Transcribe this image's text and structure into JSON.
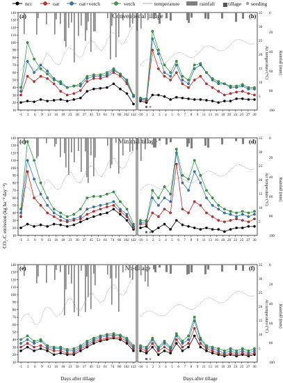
{
  "legend": {
    "ncc": "ncc",
    "oat": "oat",
    "oat_vetch": "oat+vetch",
    "vetch": "vetch",
    "temperature": "temperature",
    "rainfall": "rainfall",
    "tillage": "tillage",
    "seeding": "seeding"
  },
  "colors": {
    "ncc": "#000000",
    "oat": "#d62728",
    "oat_vetch": "#2a7ab8",
    "vetch": "#2f9e44",
    "temperature": "#9a9a9a",
    "rainfall": "#7f7f7f"
  },
  "panel_letters": {
    "a": "(a)",
    "b": "(b)",
    "c": "(c)",
    "d": "(d)",
    "e": "(e)",
    "f": "(f)"
  },
  "titles": {
    "conv": "Conventional tillage",
    "min": "Minimal tillage",
    "no": "No-tillage"
  },
  "left_ylabel": "CO₂-C emission (kg ha⁻¹ day⁻¹)",
  "right_ylabel": "Air temperature (°C)",
  "rain_ylabel": "Rainfall (mm)",
  "xlabel": "Days after tillage",
  "left_xticks": [
    "-1",
    "3",
    "6",
    "9",
    "13",
    "16",
    "18",
    "23",
    "30",
    "37",
    "45",
    "53",
    "61",
    "74",
    "86",
    "102",
    "122"
  ],
  "right_xticks": [
    "-10",
    "1",
    "2",
    "3",
    "4",
    "5",
    "6",
    "7",
    "8",
    "9",
    "11",
    "13",
    "16",
    "18",
    "20",
    "23",
    "25",
    "27",
    "30"
  ],
  "left_yticks": [
    "10",
    "20",
    "30",
    "40",
    "50",
    "60",
    "70",
    "80",
    "90",
    "100",
    "110",
    "120",
    "130",
    "140"
  ],
  "temp_ticks": [
    "5",
    "10",
    "15",
    "20",
    "25",
    "30",
    "35"
  ],
  "rain_ticks": [
    "0",
    "20",
    "40",
    "60",
    "80",
    "100"
  ],
  "chart_data": [
    {
      "type": "line",
      "panel": "(a)",
      "title": "Conventional tillage",
      "xlabel": "",
      "ylabel": "CO₂-C emission (kg ha⁻¹ day⁻¹)",
      "ylim": [
        10,
        140
      ],
      "x": [
        "-1",
        "1",
        "3",
        "6",
        "9",
        "13",
        "16",
        "18",
        "23",
        "30",
        "37",
        "45",
        "53",
        "61",
        "74",
        "86",
        "102",
        "122"
      ],
      "series": [
        {
          "name": "ncc",
          "values": [
            20,
            22,
            21,
            24,
            22,
            23,
            24,
            22,
            24,
            26,
            35,
            38,
            39,
            40,
            45,
            38,
            32,
            18
          ]
        },
        {
          "name": "oat",
          "values": [
            30,
            55,
            48,
            55,
            52,
            45,
            35,
            30,
            32,
            36,
            48,
            52,
            52,
            55,
            60,
            55,
            45,
            28
          ]
        },
        {
          "name": "oat+vetch",
          "values": [
            35,
            75,
            60,
            70,
            62,
            52,
            45,
            40,
            42,
            42,
            52,
            55,
            55,
            57,
            63,
            58,
            48,
            28
          ]
        },
        {
          "name": "vetch",
          "values": [
            40,
            100,
            78,
            65,
            58,
            50,
            48,
            40,
            42,
            45,
            55,
            57,
            57,
            60,
            65,
            58,
            50,
            30
          ]
        }
      ],
      "temperature_range": [
        5,
        35
      ],
      "rainfall_range": [
        0,
        100
      ]
    },
    {
      "type": "line",
      "panel": "(b)",
      "title": "",
      "xlabel": "",
      "ylabel": "",
      "ylim": [
        10,
        140
      ],
      "x": [
        "-10",
        "0",
        "1",
        "2",
        "3",
        "4",
        "5",
        "6",
        "7",
        "8",
        "9",
        "11",
        "13",
        "16",
        "18",
        "20",
        "23",
        "25",
        "27",
        "30"
      ],
      "series": [
        {
          "name": "ncc",
          "values": [
            22,
            20,
            30,
            30,
            28,
            24,
            27,
            26,
            25,
            24,
            24,
            23,
            22,
            20,
            22,
            22,
            25,
            25,
            24,
            24
          ]
        },
        {
          "name": "oat",
          "values": [
            24,
            22,
            90,
            65,
            55,
            50,
            60,
            45,
            40,
            50,
            55,
            45,
            40,
            35,
            30,
            32,
            34,
            35,
            32,
            30
          ]
        },
        {
          "name": "oat+vetch",
          "values": [
            25,
            24,
            105,
            85,
            60,
            55,
            70,
            50,
            45,
            65,
            70,
            60,
            50,
            45,
            45,
            40,
            40,
            42,
            38,
            38
          ]
        },
        {
          "name": "vetch",
          "values": [
            26,
            25,
            115,
            90,
            70,
            60,
            75,
            55,
            50,
            70,
            72,
            60,
            52,
            48,
            45,
            42,
            42,
            44,
            40,
            40
          ]
        }
      ]
    },
    {
      "type": "line",
      "panel": "(c)",
      "title": "Minimal tillage",
      "xlabel": "",
      "ylabel": "CO₂-C emission (kg ha⁻¹ day⁻¹)",
      "ylim": [
        10,
        140
      ],
      "x": [
        "-1",
        "1",
        "3",
        "6",
        "9",
        "13",
        "16",
        "18",
        "23",
        "30",
        "37",
        "45",
        "53",
        "61",
        "74",
        "86",
        "102",
        "122"
      ],
      "series": [
        {
          "name": "ncc",
          "values": [
            20,
            25,
            22,
            24,
            22,
            25,
            24,
            22,
            24,
            28,
            32,
            35,
            38,
            40,
            45,
            38,
            30,
            18
          ]
        },
        {
          "name": "oat",
          "values": [
            35,
            95,
            60,
            50,
            40,
            35,
            30,
            28,
            30,
            32,
            38,
            42,
            45,
            48,
            50,
            42,
            35,
            20
          ]
        },
        {
          "name": "oat+vetch",
          "values": [
            40,
            110,
            85,
            65,
            50,
            40,
            35,
            30,
            32,
            35,
            45,
            48,
            50,
            52,
            55,
            45,
            38,
            22
          ]
        },
        {
          "name": "vetch",
          "values": [
            45,
            135,
            110,
            80,
            60,
            45,
            40,
            35,
            38,
            45,
            60,
            62,
            62,
            65,
            68,
            55,
            45,
            25
          ]
        }
      ]
    },
    {
      "type": "line",
      "panel": "(d)",
      "title": "",
      "xlabel": "",
      "ylabel": "",
      "ylim": [
        10,
        140
      ],
      "x": [
        "-10",
        "0",
        "1",
        "2",
        "3",
        "4",
        "5",
        "6",
        "7",
        "8",
        "9",
        "11",
        "13",
        "16",
        "18",
        "20",
        "23",
        "25",
        "27",
        "30"
      ],
      "series": [
        {
          "name": "ncc",
          "values": [
            20,
            22,
            15,
            20,
            25,
            18,
            30,
            24,
            22,
            20,
            18,
            20,
            18,
            18,
            15,
            18,
            20,
            20,
            22,
            22
          ]
        },
        {
          "name": "oat",
          "values": [
            25,
            25,
            40,
            35,
            45,
            40,
            105,
            45,
            40,
            55,
            50,
            40,
            35,
            30,
            28,
            30,
            32,
            30,
            28,
            32
          ]
        },
        {
          "name": "oat+vetch",
          "values": [
            27,
            28,
            60,
            50,
            60,
            55,
            120,
            80,
            70,
            95,
            80,
            60,
            50,
            45,
            40,
            38,
            35,
            38,
            35,
            38
          ]
        },
        {
          "name": "vetch",
          "values": [
            30,
            30,
            70,
            60,
            75,
            65,
            125,
            90,
            85,
            110,
            90,
            70,
            60,
            50,
            45,
            42,
            40,
            42,
            40,
            42
          ]
        }
      ]
    },
    {
      "type": "line",
      "panel": "(e)",
      "title": "No-tillage",
      "xlabel": "Days after tillage",
      "ylabel": "CO₂-C emission (kg ha⁻¹ day⁻¹)",
      "ylim": [
        10,
        140
      ],
      "x": [
        "-1",
        "1",
        "3",
        "6",
        "9",
        "13",
        "16",
        "18",
        "23",
        "30",
        "37",
        "45",
        "53",
        "61",
        "74",
        "86",
        "102",
        "122"
      ],
      "series": [
        {
          "name": "ncc",
          "values": [
            25,
            30,
            25,
            28,
            25,
            20,
            22,
            20,
            20,
            25,
            30,
            35,
            38,
            40,
            42,
            40,
            35,
            25
          ]
        },
        {
          "name": "oat",
          "values": [
            30,
            35,
            30,
            32,
            28,
            25,
            25,
            22,
            22,
            28,
            32,
            38,
            40,
            42,
            44,
            42,
            38,
            28
          ]
        },
        {
          "name": "oat+vetch",
          "values": [
            35,
            40,
            35,
            38,
            30,
            28,
            28,
            25,
            25,
            30,
            35,
            40,
            43,
            45,
            46,
            45,
            40,
            30
          ]
        },
        {
          "name": "vetch",
          "values": [
            40,
            45,
            38,
            40,
            32,
            30,
            30,
            27,
            28,
            32,
            38,
            42,
            45,
            47,
            48,
            46,
            42,
            32
          ]
        }
      ]
    },
    {
      "type": "line",
      "panel": "(f)",
      "title": "",
      "xlabel": "Days after tillage",
      "ylabel": "",
      "ylim": [
        10,
        140
      ],
      "x": [
        "-10",
        "0",
        "1",
        "2",
        "3",
        "4",
        "5",
        "6",
        "7",
        "8",
        "9",
        "11",
        "13",
        "16",
        "18",
        "20",
        "23",
        "25",
        "27",
        "30"
      ],
      "series": [
        {
          "name": "ncc",
          "values": [
            25,
            22,
            30,
            20,
            25,
            22,
            35,
            25,
            30,
            45,
            30,
            25,
            22,
            20,
            18,
            20,
            18,
            20,
            18,
            20
          ]
        },
        {
          "name": "oat",
          "values": [
            28,
            25,
            35,
            25,
            30,
            25,
            40,
            30,
            35,
            55,
            35,
            28,
            25,
            22,
            20,
            22,
            20,
            22,
            20,
            22
          ]
        },
        {
          "name": "oat+vetch",
          "values": [
            30,
            28,
            40,
            28,
            35,
            28,
            45,
            35,
            40,
            65,
            40,
            30,
            28,
            25,
            22,
            25,
            22,
            25,
            22,
            25
          ]
        },
        {
          "name": "vetch",
          "values": [
            32,
            30,
            42,
            30,
            38,
            30,
            48,
            38,
            45,
            70,
            42,
            32,
            30,
            28,
            25,
            28,
            25,
            28,
            25,
            28
          ]
        }
      ]
    }
  ]
}
